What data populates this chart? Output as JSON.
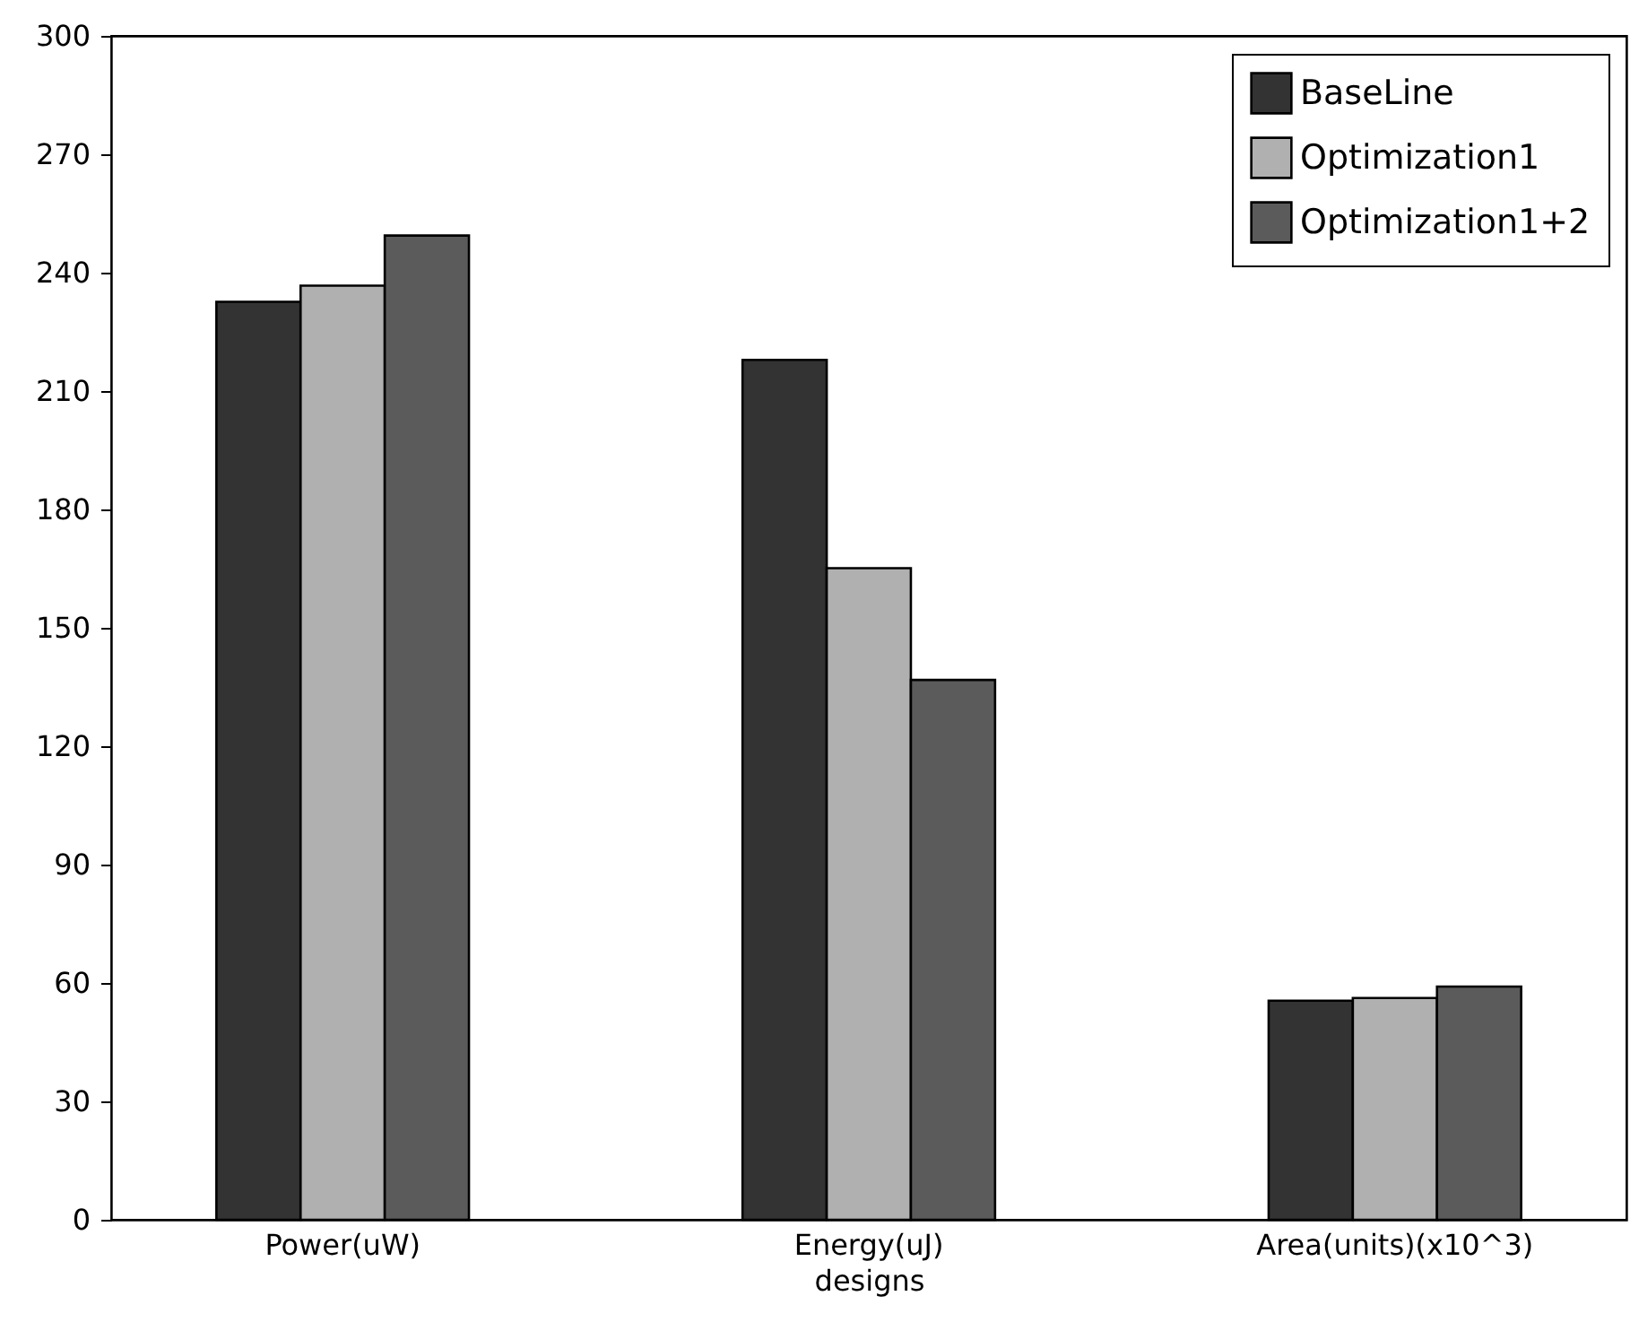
{
  "chart_data": {
    "type": "bar",
    "xlabel": "designs",
    "categories": [
      "Power(uW)",
      "Energy(uJ)",
      "Area(units)(x10^3)"
    ],
    "series": [
      {
        "name": "BaseLine",
        "color": "#333333",
        "values": [
          232.6,
          217.9,
          55.5
        ]
      },
      {
        "name": "Optimization1",
        "color": "#b0b0b0",
        "values": [
          236.7,
          165.1,
          56.2
        ]
      },
      {
        "name": "Optimization1+2",
        "color": "#5b5b5b",
        "values": [
          249.4,
          136.8,
          59.1
        ]
      }
    ],
    "ylim": [
      0,
      300
    ],
    "yticks": [
      0,
      30,
      60,
      90,
      120,
      150,
      180,
      210,
      240,
      270,
      300
    ],
    "grid": false,
    "legend": "top right"
  }
}
